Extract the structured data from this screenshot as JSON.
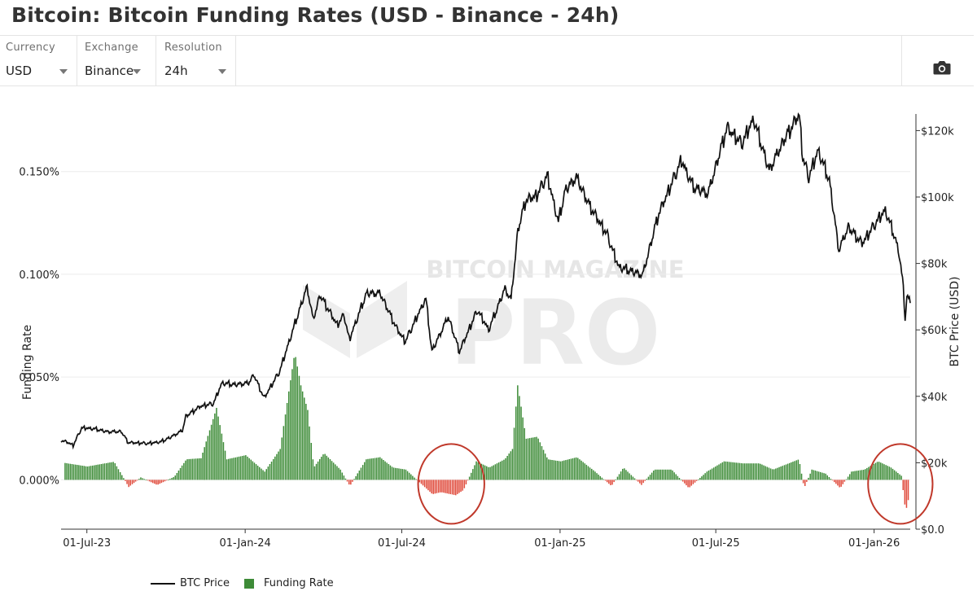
{
  "title": "Bitcoin: Bitcoin Funding Rates (USD - Binance - 24h)",
  "controls": {
    "currency": {
      "label": "Currency",
      "value": "USD"
    },
    "exchange": {
      "label": "Exchange",
      "value": "Binance"
    },
    "resolution": {
      "label": "Resolution",
      "value": "24h"
    }
  },
  "icons": {
    "camera": "camera-icon",
    "dropdown": "chevron-down-icon"
  },
  "colors": {
    "price_line": "#111111",
    "funding_positive": "#3d8b37",
    "funding_negative": "#e04a3b",
    "highlight_circle": "#c0392b"
  },
  "watermark": {
    "line1": "BITCOIN MAGAZINE",
    "line2": "PRO"
  },
  "legend": {
    "price": "BTC Price",
    "funding": "Funding Rate"
  },
  "chart_data": {
    "type": "line",
    "title": "",
    "x_ticks": [
      "01-Jul-23",
      "01-Jan-24",
      "01-Jul-24",
      "01-Jan-25",
      "01-Jul-25",
      "01-Jan-26"
    ],
    "y_left": {
      "label": "Funding Rate",
      "ticks": [
        "0.000%",
        "0.050%",
        "0.100%",
        "0.150%"
      ],
      "range": [
        -0.024,
        0.178
      ]
    },
    "y_right": {
      "label": "BTC Price (USD)",
      "ticks": [
        "$0.0",
        "$20k",
        "$40k",
        "$60k",
        "$80k",
        "$100k",
        "$120k"
      ],
      "range": [
        0,
        125000
      ]
    },
    "x_range": [
      "2023-06-01",
      "2026-02-12"
    ],
    "series": [
      {
        "name": "BTC Price",
        "points": [
          [
            "2023-06-01",
            26800
          ],
          [
            "2023-06-10",
            26000
          ],
          [
            "2023-06-15",
            25200
          ],
          [
            "2023-06-25",
            30500
          ],
          [
            "2023-07-10",
            30200
          ],
          [
            "2023-07-25",
            29300
          ],
          [
            "2023-08-10",
            29400
          ],
          [
            "2023-08-18",
            26100
          ],
          [
            "2023-09-10",
            25800
          ],
          [
            "2023-09-25",
            26300
          ],
          [
            "2023-10-05",
            27500
          ],
          [
            "2023-10-20",
            29700
          ],
          [
            "2023-10-24",
            34000
          ],
          [
            "2023-11-10",
            37000
          ],
          [
            "2023-11-25",
            37800
          ],
          [
            "2023-12-05",
            44000
          ],
          [
            "2023-12-20",
            43500
          ],
          [
            "2024-01-05",
            44000
          ],
          [
            "2024-01-11",
            46500
          ],
          [
            "2024-01-23",
            39500
          ],
          [
            "2024-02-10",
            47500
          ],
          [
            "2024-02-28",
            62000
          ],
          [
            "2024-03-13",
            73000
          ],
          [
            "2024-03-20",
            63000
          ],
          [
            "2024-03-28",
            70500
          ],
          [
            "2024-04-17",
            61500
          ],
          [
            "2024-04-25",
            64500
          ],
          [
            "2024-05-01",
            57000
          ],
          [
            "2024-05-21",
            71000
          ],
          [
            "2024-06-06",
            71000
          ],
          [
            "2024-06-25",
            60500
          ],
          [
            "2024-07-05",
            56500
          ],
          [
            "2024-07-29",
            69500
          ],
          [
            "2024-08-05",
            53500
          ],
          [
            "2024-08-24",
            64000
          ],
          [
            "2024-09-06",
            53500
          ],
          [
            "2024-09-27",
            66000
          ],
          [
            "2024-10-10",
            60000
          ],
          [
            "2024-10-29",
            72500
          ],
          [
            "2024-11-05",
            69000
          ],
          [
            "2024-11-13",
            90000
          ],
          [
            "2024-11-22",
            99000
          ],
          [
            "2024-12-05",
            100500
          ],
          [
            "2024-12-17",
            106500
          ],
          [
            "2024-12-30",
            92500
          ],
          [
            "2025-01-07",
            102000
          ],
          [
            "2025-01-20",
            106000
          ],
          [
            "2025-02-03",
            98000
          ],
          [
            "2025-02-25",
            88500
          ],
          [
            "2025-03-10",
            79000
          ],
          [
            "2025-04-07",
            76500
          ],
          [
            "2025-04-25",
            94500
          ],
          [
            "2025-05-22",
            111000
          ],
          [
            "2025-06-05",
            103000
          ],
          [
            "2025-06-22",
            101000
          ],
          [
            "2025-07-14",
            121000
          ],
          [
            "2025-07-31",
            116000
          ],
          [
            "2025-08-14",
            123500
          ],
          [
            "2025-09-01",
            108000
          ],
          [
            "2025-09-18",
            117000
          ],
          [
            "2025-10-06",
            125000
          ],
          [
            "2025-10-10",
            112000
          ],
          [
            "2025-10-17",
            106000
          ],
          [
            "2025-10-28",
            114000
          ],
          [
            "2025-11-10",
            105000
          ],
          [
            "2025-11-21",
            84000
          ],
          [
            "2025-12-02",
            91000
          ],
          [
            "2025-12-18",
            86000
          ],
          [
            "2026-01-05",
            93000
          ],
          [
            "2026-01-14",
            96000
          ],
          [
            "2026-01-25",
            88000
          ],
          [
            "2026-01-30",
            83000
          ],
          [
            "2026-02-04",
            73000
          ],
          [
            "2026-02-06",
            63000
          ],
          [
            "2026-02-08",
            70000
          ],
          [
            "2026-02-12",
            68500
          ]
        ]
      },
      {
        "name": "Funding Rate",
        "points": [
          [
            "2023-06-05",
            0.0082
          ],
          [
            "2023-07-01",
            0.0065
          ],
          [
            "2023-08-01",
            0.0088
          ],
          [
            "2023-08-18",
            -0.0035
          ],
          [
            "2023-09-01",
            0.0012
          ],
          [
            "2023-09-20",
            -0.0025
          ],
          [
            "2023-10-10",
            0.0015
          ],
          [
            "2023-10-24",
            0.01
          ],
          [
            "2023-11-10",
            0.0105
          ],
          [
            "2023-11-28",
            0.035
          ],
          [
            "2023-12-10",
            0.01
          ],
          [
            "2024-01-01",
            0.012
          ],
          [
            "2024-01-23",
            0.004
          ],
          [
            "2024-02-10",
            0.015
          ],
          [
            "2024-02-20",
            0.043
          ],
          [
            "2024-02-27",
            0.062
          ],
          [
            "2024-03-05",
            0.046
          ],
          [
            "2024-03-13",
            0.034
          ],
          [
            "2024-03-20",
            0.006
          ],
          [
            "2024-04-01",
            0.013
          ],
          [
            "2024-04-20",
            0.005
          ],
          [
            "2024-05-01",
            -0.003
          ],
          [
            "2024-05-20",
            0.01
          ],
          [
            "2024-06-05",
            0.011
          ],
          [
            "2024-06-20",
            0.006
          ],
          [
            "2024-07-05",
            0.005
          ],
          [
            "2024-08-05",
            -0.007
          ],
          [
            "2024-08-15",
            -0.006
          ],
          [
            "2024-09-01",
            -0.0075
          ],
          [
            "2024-09-10",
            -0.005
          ],
          [
            "2024-09-25",
            0.009
          ],
          [
            "2024-10-10",
            0.006
          ],
          [
            "2024-10-28",
            0.01
          ],
          [
            "2024-11-06",
            0.015
          ],
          [
            "2024-11-12",
            0.046
          ],
          [
            "2024-11-22",
            0.02
          ],
          [
            "2024-12-05",
            0.021
          ],
          [
            "2024-12-17",
            0.01
          ],
          [
            "2025-01-01",
            0.009
          ],
          [
            "2025-01-20",
            0.011
          ],
          [
            "2025-02-10",
            0.004
          ],
          [
            "2025-03-01",
            -0.003
          ],
          [
            "2025-03-15",
            0.006
          ],
          [
            "2025-04-05",
            -0.0025
          ],
          [
            "2025-04-20",
            0.005
          ],
          [
            "2025-05-10",
            0.005
          ],
          [
            "2025-05-30",
            -0.004
          ],
          [
            "2025-06-20",
            0.004
          ],
          [
            "2025-07-10",
            0.009
          ],
          [
            "2025-08-01",
            0.008
          ],
          [
            "2025-08-20",
            0.008
          ],
          [
            "2025-09-05",
            0.005
          ],
          [
            "2025-10-05",
            0.01
          ],
          [
            "2025-10-11",
            -0.004
          ],
          [
            "2025-10-20",
            0.005
          ],
          [
            "2025-11-05",
            0.003
          ],
          [
            "2025-11-22",
            -0.004
          ],
          [
            "2025-12-05",
            0.004
          ],
          [
            "2025-12-20",
            0.005
          ],
          [
            "2026-01-05",
            0.009
          ],
          [
            "2026-01-20",
            0.006
          ],
          [
            "2026-02-01",
            0.002
          ],
          [
            "2026-02-06",
            -0.0155
          ],
          [
            "2026-02-10",
            -0.008
          ]
        ]
      }
    ],
    "annotations": [
      {
        "type": "circle",
        "color": "#c0392b",
        "around": [
          "2024-07-20",
          "2024-10-05"
        ]
      },
      {
        "type": "circle",
        "color": "#c0392b",
        "around": [
          "2025-12-25",
          "2026-03-10"
        ]
      }
    ]
  }
}
